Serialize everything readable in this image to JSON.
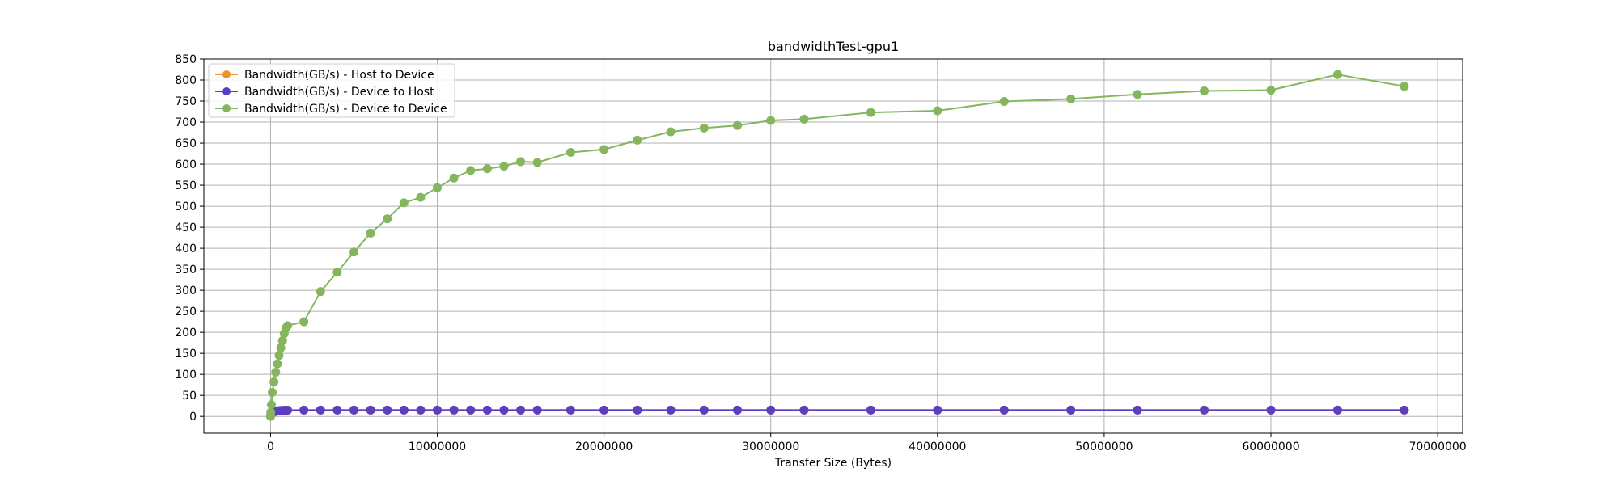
{
  "chart_data": {
    "type": "line",
    "title": "bandwidthTest-gpu1",
    "xlabel": "Transfer Size (Bytes)",
    "ylabel": "",
    "xlim": [
      -4000000,
      71500000
    ],
    "ylim": [
      -40,
      850
    ],
    "xticks": [
      0,
      10000000,
      20000000,
      30000000,
      40000000,
      50000000,
      60000000,
      70000000
    ],
    "xtick_labels": [
      "0",
      "10000000",
      "20000000",
      "30000000",
      "40000000",
      "50000000",
      "60000000",
      "70000000"
    ],
    "yticks": [
      0,
      50,
      100,
      150,
      200,
      250,
      300,
      350,
      400,
      450,
      500,
      550,
      600,
      650,
      700,
      750,
      800,
      850
    ],
    "ytick_labels": [
      "0",
      "50",
      "100",
      "150",
      "200",
      "250",
      "300",
      "350",
      "400",
      "450",
      "500",
      "550",
      "600",
      "650",
      "700",
      "750",
      "800",
      "850"
    ],
    "grid": true,
    "legend_position": "top-left",
    "x": [
      1024,
      10240,
      51200,
      102400,
      204800,
      307200,
      409600,
      512000,
      614400,
      716800,
      819200,
      921600,
      1024000,
      2000000,
      3000000,
      4000000,
      5000000,
      6000000,
      7000000,
      8000000,
      9000000,
      10000000,
      11000000,
      12000000,
      13000000,
      14000000,
      15000000,
      16000000,
      18000000,
      20000000,
      22000000,
      24000000,
      26000000,
      28000000,
      30000000,
      32000000,
      36000000,
      40000000,
      44000000,
      48000000,
      52000000,
      56000000,
      60000000,
      64000000,
      68000000
    ],
    "series": [
      {
        "name": "Bandwidth(GB/s) - Host to Device",
        "color": "#f0922a",
        "values": [
          0.5,
          2,
          6,
          9,
          11,
          12,
          13,
          13.5,
          14,
          14.2,
          14.5,
          14.6,
          14.7,
          15,
          15,
          15,
          15,
          15,
          15,
          15,
          15,
          15,
          15,
          15,
          15,
          15,
          15,
          15,
          15,
          15,
          15,
          15,
          15,
          15,
          15,
          15,
          15,
          15,
          15,
          15,
          15,
          15,
          15,
          15,
          15
        ]
      },
      {
        "name": "Bandwidth(GB/s) - Device to Host",
        "color": "#5b3fbe",
        "values": [
          0.5,
          2,
          6,
          9,
          11,
          12,
          13,
          13.5,
          14,
          14.2,
          14.5,
          14.6,
          14.7,
          15,
          15,
          15,
          15,
          15,
          15,
          15,
          15,
          15,
          15,
          15,
          15,
          15,
          15,
          15,
          15,
          15,
          15,
          15,
          15,
          15,
          15,
          15,
          15,
          15,
          15,
          15,
          15,
          15,
          15,
          15,
          15
        ]
      },
      {
        "name": "Bandwidth(GB/s) - Device to Device",
        "color": "#85b65d",
        "values": [
          0.5,
          10,
          28,
          57,
          82,
          105,
          125,
          145,
          163,
          180,
          197,
          210,
          216,
          225,
          297,
          343,
          391,
          436,
          470,
          508,
          521,
          544,
          567,
          585,
          589,
          595,
          606,
          604,
          628,
          635,
          657,
          677,
          686,
          692,
          704,
          707,
          723,
          727,
          749,
          755,
          766,
          774,
          776,
          813,
          785
        ]
      }
    ]
  }
}
